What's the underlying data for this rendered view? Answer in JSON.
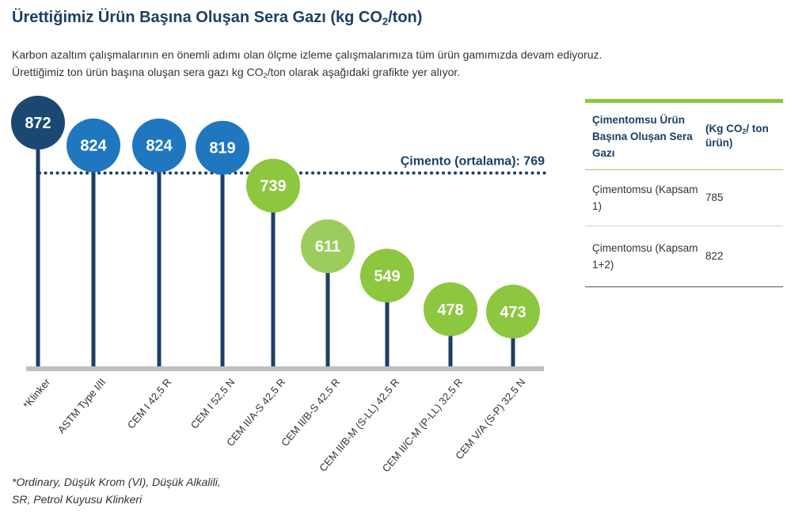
{
  "title": {
    "main": "Ürettiğimiz Ürün Başına Oluşan Sera Gazı (kg CO",
    "sub": "2",
    "tail": "/ton)"
  },
  "intro": {
    "line1": "Karbon azaltım çalışmalarının en önemli adımı olan ölçme izleme çalışmalarımıza tüm ürün gamımızda devam ediyoruz.",
    "line2_main": "Ürettiğimiz ton ürün başına oluşan sera gazı kg CO",
    "line2_sub": "2",
    "line2_tail": "/ton olarak aşağıdaki grafikte yer alıyor."
  },
  "chart_data": {
    "type": "bar",
    "categories": [
      "*Klinker",
      "ASTM Type I/II",
      "CEM I 42,5 R",
      "CEM I 52,5 N",
      "CEM II/A-S 42,5 R",
      "CEM II/B-S 42,5 R",
      "CEM II/B-M (S-LL) 42,5 R",
      "CEM II/C-M (P-LL) 32,5 R",
      "CEM V/A (S-P) 32,5 N"
    ],
    "values": [
      872,
      824,
      824,
      819,
      739,
      611,
      549,
      478,
      473
    ],
    "colors": [
      "#1a4873",
      "#1f78bf",
      "#1f78bf",
      "#1f78bf",
      "#8dc63f",
      "#9ccc5c",
      "#8dc63f",
      "#8dc63f",
      "#8dc63f"
    ],
    "average": {
      "label": "Çimento (ortalama): 769",
      "value": 769
    },
    "stem_color": "#1c3f66",
    "baseline_color": "#bfbfbf"
  },
  "footnote": {
    "line1": "*Ordinary, Düşük Krom (VI), Düşük Alkalili,",
    "line2": "SR, Petrol Kuyusu Klinkeri"
  },
  "table": {
    "header": {
      "col1": "Çimentomsu Ürün Başına Oluşan Sera Gazı",
      "col2_main": "(Kg CO",
      "col2_sub": "2",
      "col2_tail": "/ ton ürün)"
    },
    "rows": [
      {
        "label": "Çimentomsu (Kapsam 1)",
        "value": "785"
      },
      {
        "label": "Çimentomsu (Kapsam 1+2)",
        "value": "822"
      }
    ]
  }
}
